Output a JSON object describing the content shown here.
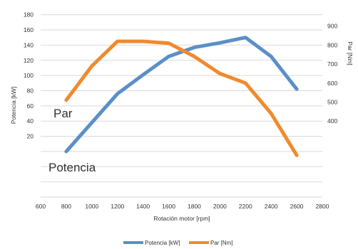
{
  "chart_data": {
    "type": "line",
    "title": "",
    "xlabel": "Rotación motor [rpm]",
    "ylabel_left": "Potencia [kW]",
    "ylabel_right": "Par [Nm]",
    "x_ticks": [
      "600",
      "800",
      "1000",
      "1200",
      "1400",
      "1600",
      "1800",
      "2000",
      "2200",
      "2400",
      "2600",
      "2800"
    ],
    "y_left_ticks": [
      "20",
      "40",
      "60",
      "80",
      "100",
      "120",
      "140",
      "160",
      "180"
    ],
    "y_right_ticks": [
      "400",
      "500",
      "600",
      "700",
      "800",
      "900"
    ],
    "xlim": [
      600,
      2800
    ],
    "ylim_left": [
      -60,
      190
    ],
    "ylim_right": [
      0,
      1000
    ],
    "grid": true,
    "legend_position": "bottom",
    "series": [
      {
        "name": "Potencia [kW]",
        "axis": "left",
        "color": "#5b8fc7",
        "x": [
          800,
          1000,
          1200,
          1400,
          1600,
          1800,
          2000,
          2200,
          2400,
          2600
        ],
        "y": [
          0,
          38,
          76,
          101,
          125,
          137,
          143,
          150,
          125,
          82
        ]
      },
      {
        "name": "Par [Nm]",
        "axis": "right",
        "color": "#f08a2e",
        "x": [
          800,
          1000,
          1200,
          1400,
          1600,
          1800,
          2000,
          2200,
          2400,
          2600
        ],
        "y": [
          510,
          690,
          820,
          820,
          810,
          740,
          650,
          600,
          440,
          220
        ]
      }
    ],
    "annotations": [
      {
        "text": "Par",
        "anchor": "near Par series at 800 rpm"
      },
      {
        "text": "Potencia",
        "anchor": "below Potencia series at 800 rpm"
      }
    ]
  }
}
